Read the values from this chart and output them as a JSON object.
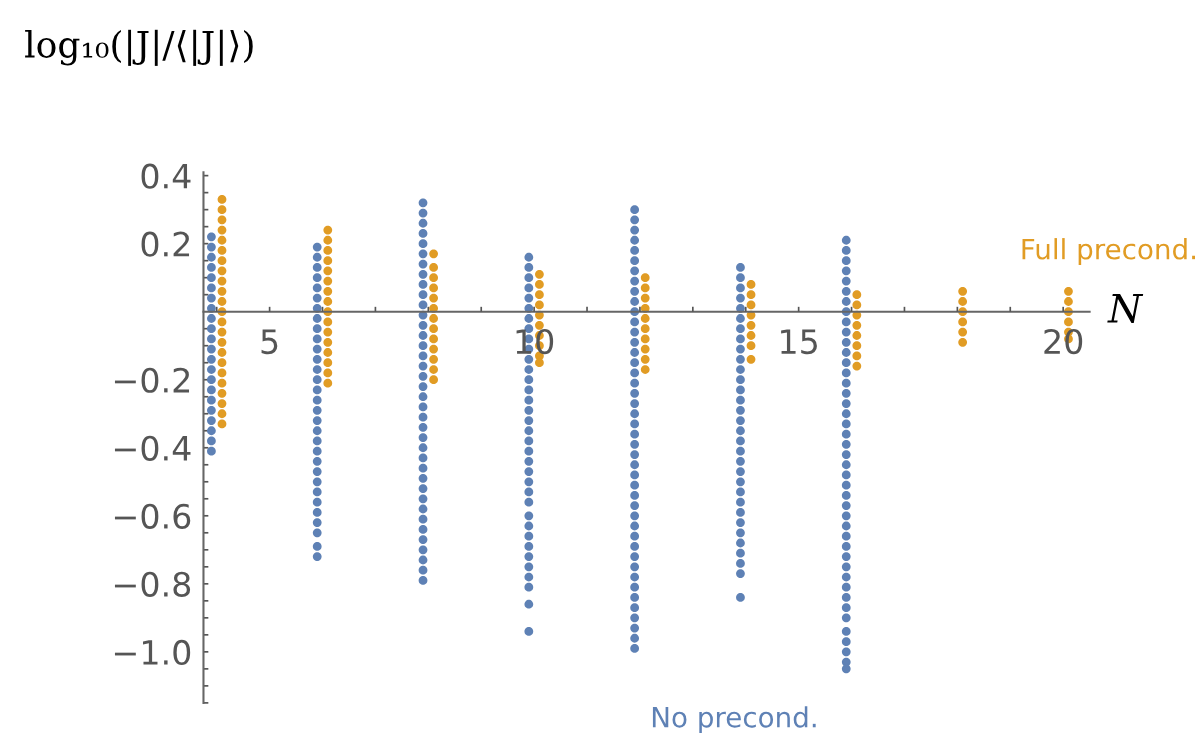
{
  "chart_data": {
    "type": "scatter",
    "ylabel": "log₁₀(|J|/⟨|J|⟩)",
    "xlabel": "N",
    "xlim": [
      3.75,
      20.5
    ],
    "xticks": [
      {
        "value": 4,
        "label": null
      },
      {
        "value": 5,
        "label": "5"
      },
      {
        "value": 6,
        "label": null
      },
      {
        "value": 7,
        "label": null
      },
      {
        "value": 8,
        "label": null
      },
      {
        "value": 9,
        "label": null
      },
      {
        "value": 10,
        "label": "10"
      },
      {
        "value": 11,
        "label": null
      },
      {
        "value": 12,
        "label": null
      },
      {
        "value": 13,
        "label": null
      },
      {
        "value": 14,
        "label": null
      },
      {
        "value": 15,
        "label": "15"
      },
      {
        "value": 16,
        "label": null
      },
      {
        "value": 17,
        "label": null
      },
      {
        "value": 18,
        "label": null
      },
      {
        "value": 19,
        "label": null
      },
      {
        "value": 20,
        "label": "20"
      }
    ],
    "ylim": [
      -1.15,
      0.41
    ],
    "yticks": [
      {
        "value": -1.15,
        "label": null
      },
      {
        "value": -1.1,
        "label": null
      },
      {
        "value": -1.05,
        "label": null
      },
      {
        "value": -1.0,
        "label": "−1.0"
      },
      {
        "value": -0.95,
        "label": null
      },
      {
        "value": -0.9,
        "label": null
      },
      {
        "value": -0.85,
        "label": null
      },
      {
        "value": -0.8,
        "label": "−0.8"
      },
      {
        "value": -0.75,
        "label": null
      },
      {
        "value": -0.7,
        "label": null
      },
      {
        "value": -0.65,
        "label": null
      },
      {
        "value": -0.6,
        "label": "−0.6"
      },
      {
        "value": -0.55,
        "label": null
      },
      {
        "value": -0.5,
        "label": null
      },
      {
        "value": -0.45,
        "label": null
      },
      {
        "value": -0.4,
        "label": "−0.4"
      },
      {
        "value": -0.35,
        "label": null
      },
      {
        "value": -0.3,
        "label": null
      },
      {
        "value": -0.25,
        "label": null
      },
      {
        "value": -0.2,
        "label": "−0.2"
      },
      {
        "value": -0.15,
        "label": null
      },
      {
        "value": -0.1,
        "label": null
      },
      {
        "value": -0.05,
        "label": null
      },
      {
        "value": 0.05,
        "label": null
      },
      {
        "value": 0.1,
        "label": null
      },
      {
        "value": 0.15,
        "label": null
      },
      {
        "value": 0.2,
        "label": "0.2"
      },
      {
        "value": 0.25,
        "label": null
      },
      {
        "value": 0.3,
        "label": null
      },
      {
        "value": 0.35,
        "label": null
      },
      {
        "value": 0.4,
        "label": "0.4"
      }
    ],
    "grid": false,
    "legend": false,
    "marker": "circle",
    "series": [
      {
        "name": "No precond.",
        "color": "#5e81b5",
        "x": [
          3.9,
          3.9,
          3.9,
          3.9,
          3.9,
          3.9,
          3.9,
          3.9,
          3.9,
          3.9,
          3.9,
          3.9,
          3.9,
          3.9,
          3.9,
          3.9,
          3.9,
          3.9,
          3.9,
          3.9,
          3.9,
          3.9,
          5.9,
          5.9,
          5.9,
          5.9,
          5.9,
          5.9,
          5.9,
          5.9,
          5.9,
          5.9,
          5.9,
          5.9,
          5.9,
          5.9,
          5.9,
          5.9,
          5.9,
          5.9,
          5.9,
          5.9,
          5.9,
          5.9,
          5.9,
          5.9,
          5.9,
          5.9,
          5.9,
          5.9,
          5.9,
          5.9,
          5.9,
          7.9,
          7.9,
          7.9,
          7.9,
          7.9,
          7.9,
          7.9,
          7.9,
          7.9,
          7.9,
          7.9,
          7.9,
          7.9,
          7.9,
          7.9,
          7.9,
          7.9,
          7.9,
          7.9,
          7.9,
          7.9,
          7.9,
          7.9,
          7.9,
          7.9,
          7.9,
          7.9,
          7.9,
          7.9,
          7.9,
          7.9,
          7.9,
          7.9,
          7.9,
          7.9,
          7.9,
          7.9,
          7.9,
          9.9,
          9.9,
          9.9,
          9.9,
          9.9,
          9.9,
          9.9,
          9.9,
          9.9,
          9.9,
          9.9,
          9.9,
          9.9,
          9.9,
          9.9,
          9.9,
          9.9,
          9.9,
          9.9,
          9.9,
          9.9,
          9.9,
          9.9,
          9.9,
          9.9,
          9.9,
          9.9,
          9.9,
          9.9,
          9.9,
          9.9,
          9.9,
          9.9,
          9.9,
          9.9,
          11.9,
          11.9,
          11.9,
          11.9,
          11.9,
          11.9,
          11.9,
          11.9,
          11.9,
          11.9,
          11.9,
          11.9,
          11.9,
          11.9,
          11.9,
          11.9,
          11.9,
          11.9,
          11.9,
          11.9,
          11.9,
          11.9,
          11.9,
          11.9,
          11.9,
          11.9,
          11.9,
          11.9,
          11.9,
          11.9,
          11.9,
          11.9,
          11.9,
          11.9,
          11.9,
          11.9,
          11.9,
          11.9,
          11.9,
          11.9,
          11.9,
          11.9,
          11.9,
          11.9,
          13.9,
          13.9,
          13.9,
          13.9,
          13.9,
          13.9,
          13.9,
          13.9,
          13.9,
          13.9,
          13.9,
          13.9,
          13.9,
          13.9,
          13.9,
          13.9,
          13.9,
          13.9,
          13.9,
          13.9,
          13.9,
          13.9,
          13.9,
          13.9,
          13.9,
          13.9,
          13.9,
          13.9,
          13.9,
          13.9,
          13.9,
          13.9,
          15.9,
          15.9,
          15.9,
          15.9,
          15.9,
          15.9,
          15.9,
          15.9,
          15.9,
          15.9,
          15.9,
          15.9,
          15.9,
          15.9,
          15.9,
          15.9,
          15.9,
          15.9,
          15.9,
          15.9,
          15.9,
          15.9,
          15.9,
          15.9,
          15.9,
          15.9,
          15.9,
          15.9,
          15.9,
          15.9,
          15.9,
          15.9,
          15.9,
          15.9,
          15.9,
          15.9,
          15.9,
          15.9,
          15.9,
          15.9,
          15.9,
          15.9,
          15.9
        ],
        "values": [
          0.22,
          0.19,
          0.16,
          0.13,
          0.1,
          0.07,
          0.04,
          0.01,
          -0.02,
          -0.05,
          -0.08,
          -0.11,
          -0.14,
          -0.17,
          -0.2,
          -0.23,
          -0.26,
          -0.29,
          -0.32,
          -0.35,
          -0.38,
          -0.41,
          0.19,
          0.16,
          0.13,
          0.1,
          0.07,
          0.04,
          0.01,
          -0.02,
          -0.05,
          -0.08,
          -0.11,
          -0.14,
          -0.17,
          -0.2,
          -0.23,
          -0.26,
          -0.29,
          -0.32,
          -0.35,
          -0.38,
          -0.41,
          -0.44,
          -0.47,
          -0.5,
          -0.53,
          -0.56,
          -0.59,
          -0.62,
          -0.65,
          -0.69,
          -0.72,
          0.32,
          0.29,
          0.26,
          0.23,
          0.2,
          0.17,
          0.14,
          0.11,
          0.08,
          0.05,
          0.02,
          -0.01,
          -0.04,
          -0.07,
          -0.1,
          -0.13,
          -0.16,
          -0.19,
          -0.22,
          -0.25,
          -0.28,
          -0.31,
          -0.34,
          -0.37,
          -0.4,
          -0.43,
          -0.46,
          -0.49,
          -0.52,
          -0.55,
          -0.58,
          -0.61,
          -0.64,
          -0.67,
          -0.7,
          -0.73,
          -0.76,
          -0.79,
          0.16,
          0.13,
          0.1,
          0.07,
          0.04,
          0.01,
          -0.02,
          -0.05,
          -0.08,
          -0.11,
          -0.14,
          -0.17,
          -0.2,
          -0.23,
          -0.26,
          -0.29,
          -0.32,
          -0.35,
          -0.38,
          -0.41,
          -0.44,
          -0.47,
          -0.5,
          -0.53,
          -0.56,
          -0.6,
          -0.63,
          -0.66,
          -0.69,
          -0.72,
          -0.75,
          -0.78,
          -0.81,
          -0.86,
          -0.94,
          0.3,
          0.27,
          0.24,
          0.21,
          0.18,
          0.15,
          0.12,
          0.09,
          0.06,
          0.03,
          0.0,
          -0.03,
          -0.06,
          -0.09,
          -0.12,
          -0.15,
          -0.18,
          -0.21,
          -0.24,
          -0.27,
          -0.3,
          -0.33,
          -0.36,
          -0.39,
          -0.42,
          -0.45,
          -0.48,
          -0.51,
          -0.54,
          -0.57,
          -0.6,
          -0.63,
          -0.66,
          -0.69,
          -0.72,
          -0.75,
          -0.78,
          -0.81,
          -0.84,
          -0.87,
          -0.9,
          -0.93,
          -0.96,
          -0.99,
          0.13,
          0.1,
          0.07,
          0.04,
          0.01,
          -0.02,
          -0.05,
          -0.08,
          -0.11,
          -0.14,
          -0.17,
          -0.2,
          -0.23,
          -0.26,
          -0.29,
          -0.32,
          -0.35,
          -0.38,
          -0.41,
          -0.44,
          -0.47,
          -0.5,
          -0.53,
          -0.56,
          -0.59,
          -0.62,
          -0.65,
          -0.68,
          -0.71,
          -0.74,
          -0.77,
          -0.84,
          0.21,
          0.18,
          0.15,
          0.12,
          0.09,
          0.06,
          0.03,
          0.0,
          -0.03,
          -0.06,
          -0.09,
          -0.12,
          -0.15,
          -0.18,
          -0.21,
          -0.24,
          -0.27,
          -0.3,
          -0.33,
          -0.36,
          -0.39,
          -0.42,
          -0.45,
          -0.48,
          -0.51,
          -0.54,
          -0.57,
          -0.6,
          -0.63,
          -0.66,
          -0.69,
          -0.72,
          -0.75,
          -0.78,
          -0.81,
          -0.84,
          -0.87,
          -0.9,
          -0.94,
          -0.97,
          -1.0,
          -1.03,
          -1.05
        ]
      },
      {
        "name": "Full precond.",
        "color": "#e19c24",
        "x": [
          4.1,
          4.1,
          4.1,
          4.1,
          4.1,
          4.1,
          4.1,
          4.1,
          4.1,
          4.1,
          4.1,
          4.1,
          4.1,
          4.1,
          4.1,
          4.1,
          4.1,
          4.1,
          4.1,
          4.1,
          4.1,
          4.1,
          4.1,
          6.1,
          6.1,
          6.1,
          6.1,
          6.1,
          6.1,
          6.1,
          6.1,
          6.1,
          6.1,
          6.1,
          6.1,
          6.1,
          6.1,
          6.1,
          6.1,
          8.1,
          8.1,
          8.1,
          8.1,
          8.1,
          8.1,
          8.1,
          8.1,
          8.1,
          8.1,
          8.1,
          8.1,
          8.1,
          10.1,
          10.1,
          10.1,
          10.1,
          10.1,
          10.1,
          10.1,
          10.1,
          10.1,
          10.1,
          12.1,
          12.1,
          12.1,
          12.1,
          12.1,
          12.1,
          12.1,
          12.1,
          12.1,
          12.1,
          14.1,
          14.1,
          14.1,
          14.1,
          14.1,
          14.1,
          14.1,
          14.1,
          16.1,
          16.1,
          16.1,
          16.1,
          16.1,
          16.1,
          16.1,
          16.1,
          18.1,
          18.1,
          18.1,
          18.1,
          18.1,
          18.1,
          20.1,
          20.1,
          20.1,
          20.1,
          20.1,
          20.1
        ],
        "values": [
          0.33,
          0.3,
          0.27,
          0.24,
          0.21,
          0.18,
          0.15,
          0.12,
          0.09,
          0.06,
          0.03,
          0.0,
          -0.03,
          -0.06,
          -0.09,
          -0.12,
          -0.15,
          -0.18,
          -0.21,
          -0.24,
          -0.27,
          -0.3,
          -0.33,
          0.24,
          0.21,
          0.18,
          0.15,
          0.12,
          0.09,
          0.06,
          0.03,
          0.0,
          -0.03,
          -0.06,
          -0.09,
          -0.12,
          -0.15,
          -0.18,
          -0.21,
          0.17,
          0.13,
          0.1,
          0.07,
          0.04,
          0.01,
          -0.02,
          -0.05,
          -0.08,
          -0.11,
          -0.14,
          -0.17,
          -0.2,
          0.11,
          0.08,
          0.05,
          0.02,
          -0.01,
          -0.04,
          -0.07,
          -0.1,
          -0.13,
          -0.15,
          0.1,
          0.07,
          0.04,
          0.01,
          -0.02,
          -0.05,
          -0.08,
          -0.11,
          -0.14,
          -0.17,
          0.08,
          0.05,
          0.02,
          -0.01,
          -0.04,
          -0.07,
          -0.1,
          -0.14,
          0.05,
          0.02,
          -0.01,
          -0.04,
          -0.07,
          -0.1,
          -0.13,
          -0.16,
          0.06,
          0.03,
          0.0,
          -0.03,
          -0.06,
          -0.09,
          0.06,
          0.03,
          0.0,
          -0.03,
          -0.06,
          -0.08
        ]
      }
    ]
  }
}
